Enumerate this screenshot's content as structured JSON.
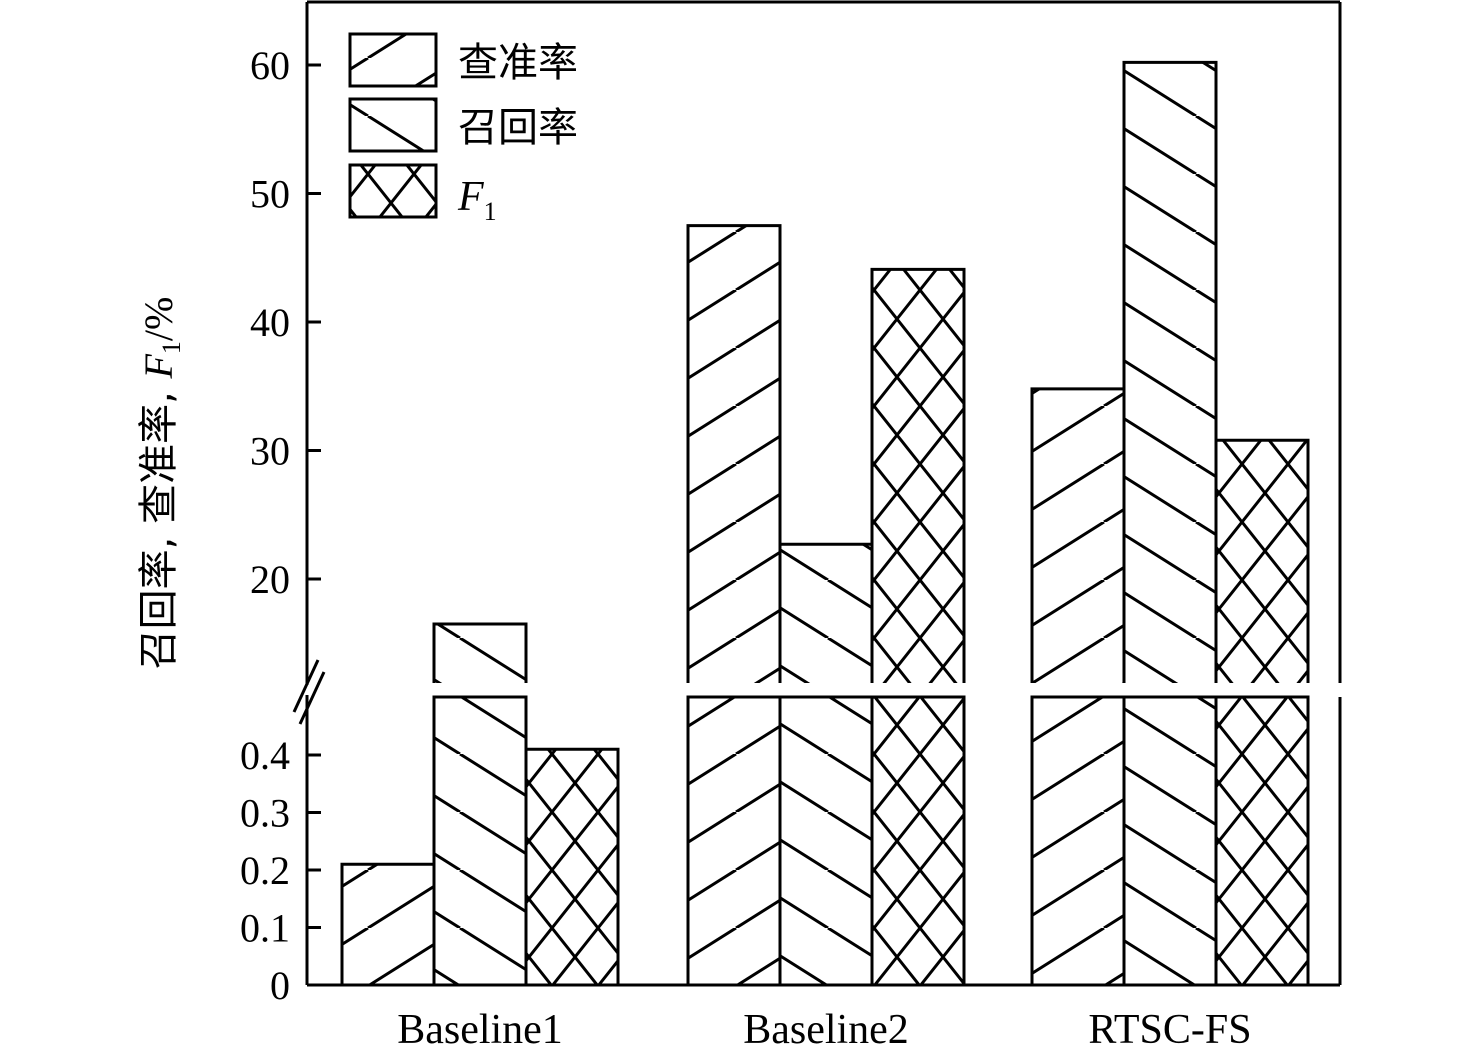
{
  "chart_data": {
    "type": "bar",
    "title": "",
    "xlabel": "",
    "ylabel": {
      "prefix": "召回率, 查准率, ",
      "f": "F",
      "sub": "1",
      "suffix": "/%"
    },
    "categories": [
      "Baseline1",
      "Baseline2",
      "RTSC-FS"
    ],
    "series": [
      {
        "name": "查准率",
        "pattern": "hatch-forward",
        "values": [
          0.21,
          47.5,
          34.8
        ]
      },
      {
        "name": "召回率",
        "pattern": "hatch-backward",
        "values": [
          16.5,
          22.7,
          60.2
        ]
      },
      {
        "name": "F",
        "name_sub": "1",
        "pattern": "crosshatch",
        "values": [
          0.41,
          44.1,
          30.8
        ]
      }
    ],
    "y_axis": {
      "broken": true,
      "lower_range": [
        0,
        0.5
      ],
      "lower_ticks": [
        "0",
        "0.1",
        "0.2",
        "0.3",
        "0.4"
      ],
      "upper_range": [
        12,
        65
      ],
      "upper_ticks": [
        "20",
        "30",
        "40",
        "50",
        "60"
      ]
    },
    "grid": false,
    "legend_position": "top-left"
  }
}
